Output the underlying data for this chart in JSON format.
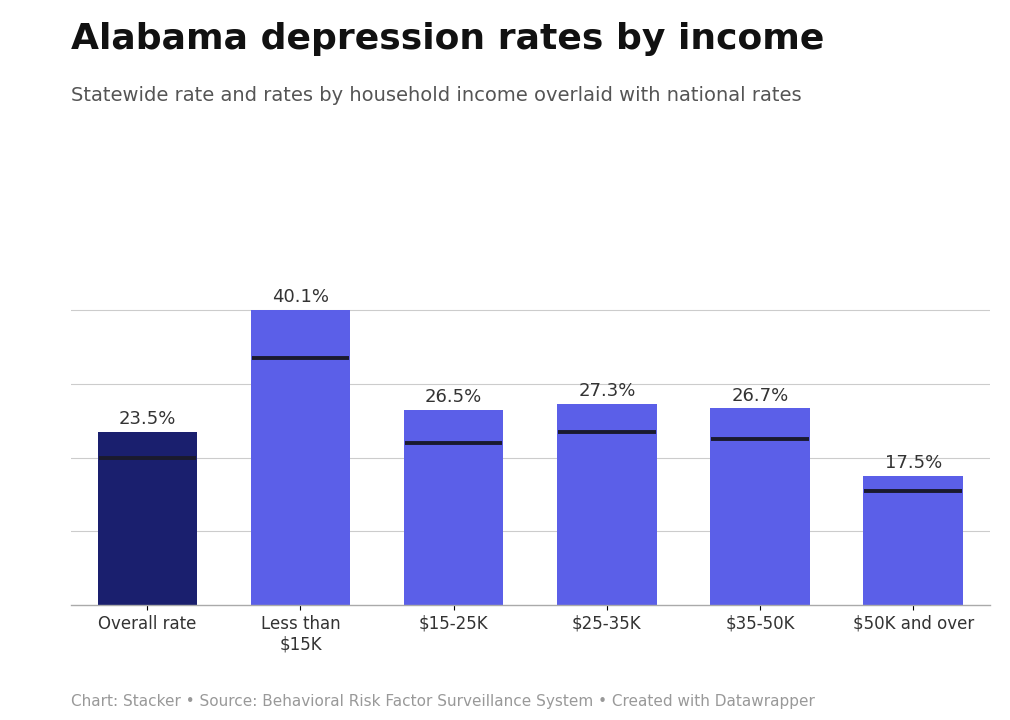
{
  "title": "Alabama depression rates by income",
  "subtitle": "Statewide rate and rates by household income overlaid with national rates",
  "caption": "Chart: Stacker • Source: Behavioral Risk Factor Surveillance System • Created with Datawrapper",
  "categories": [
    "Overall rate",
    "Less than\n$15K",
    "$15-25K",
    "$25-35K",
    "$35-50K",
    "$50K and over"
  ],
  "values": [
    23.5,
    40.1,
    26.5,
    27.3,
    26.7,
    17.5
  ],
  "national_rates": [
    20.0,
    33.5,
    22.0,
    23.5,
    22.5,
    15.5
  ],
  "bar_colors": [
    "#1a1f6e",
    "#5b5fe8",
    "#5b5fe8",
    "#5b5fe8",
    "#5b5fe8",
    "#5b5fe8"
  ],
  "label_values": [
    "23.5%",
    "40.1%",
    "26.5%",
    "27.3%",
    "26.7%",
    "17.5%"
  ],
  "ylim": [
    0,
    45
  ],
  "grid_lines": [
    10,
    20,
    30,
    40
  ],
  "background_color": "#ffffff",
  "title_fontsize": 26,
  "subtitle_fontsize": 14,
  "label_fontsize": 13,
  "tick_fontsize": 12,
  "caption_fontsize": 11
}
